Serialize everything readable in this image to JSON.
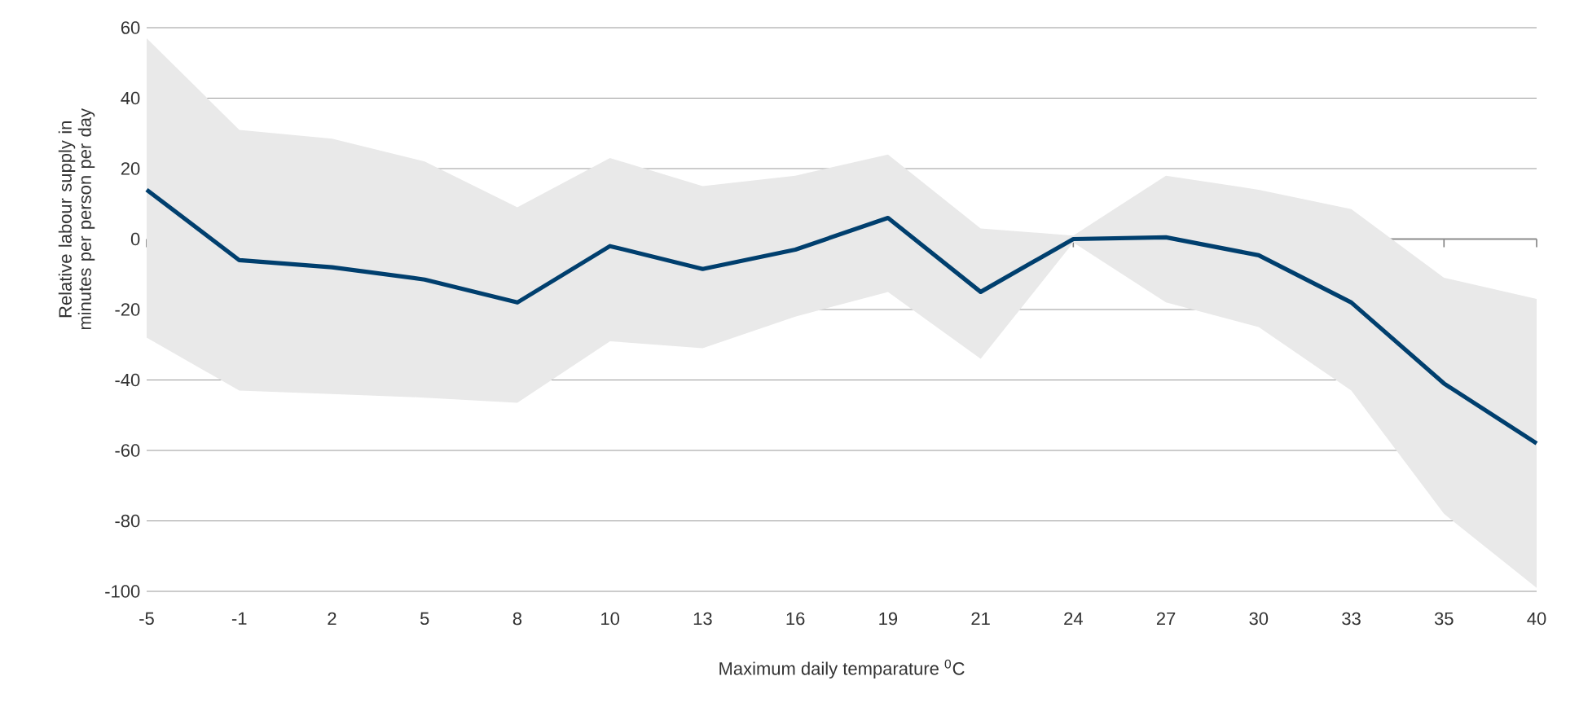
{
  "chart_data": {
    "type": "line",
    "xlabel": "Maximum daily temparature $^{0}$C",
    "ylabel": "Relative labour supply in minutes per person per day",
    "categories": [
      "-5",
      "-1",
      "2",
      "5",
      "8",
      "10",
      "13",
      "16",
      "19",
      "21",
      "24",
      "27",
      "30",
      "33",
      "35",
      "40"
    ],
    "series": [
      {
        "color": "#003f6e",
        "values": [
          14,
          -6,
          -8,
          -11.5,
          -18,
          -2,
          -8.5,
          -3,
          6,
          -15,
          0,
          0.5,
          -4.6,
          -18,
          -41,
          -58
        ],
        "lower": [
          -28,
          -43,
          -44,
          -45,
          -46.5,
          -29,
          -31,
          -22,
          -15,
          -34,
          -1,
          -18,
          -25,
          -43,
          -78,
          -99
        ],
        "upper": [
          57,
          31,
          28.5,
          22,
          9,
          23,
          15,
          18,
          24,
          3,
          1,
          18,
          14,
          8.5,
          -11,
          -17
        ]
      }
    ],
    "ylim": [
      -100,
      60
    ],
    "yticks": [
      -100,
      -80,
      -60,
      -40,
      -20,
      0,
      20,
      40,
      60
    ],
    "grid": "y",
    "line_style": "solid",
    "marker": "none"
  }
}
